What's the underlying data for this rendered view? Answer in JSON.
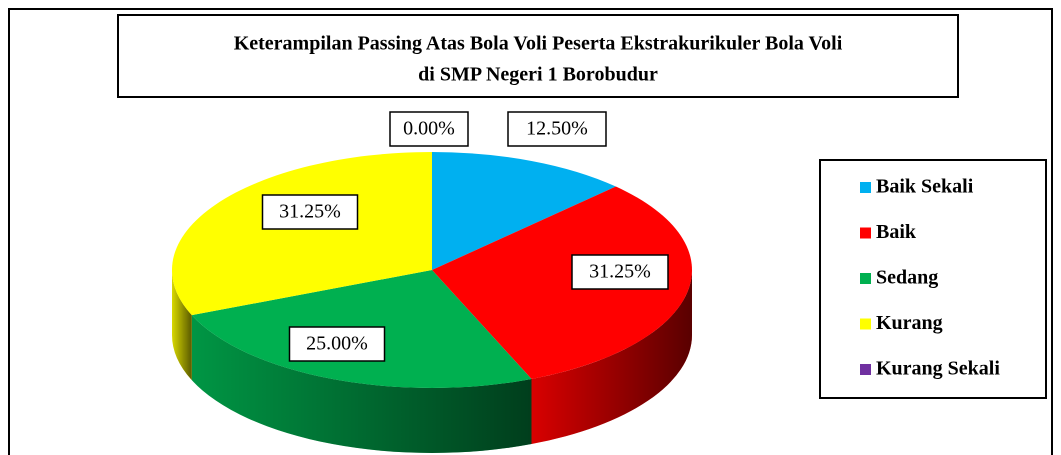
{
  "chart_data": {
    "type": "pie",
    "title": "Keterampilan Passing Atas Bola Voli Peserta Ekstrakurikuler Bola Voli",
    "subtitle": "di SMP Negeri 1 Borobudur",
    "categories": [
      "Baik Sekali",
      "Baik",
      "Sedang",
      "Kurang",
      "Kurang Sekali"
    ],
    "values": [
      12.5,
      31.25,
      25,
      31.25,
      0
    ],
    "value_labels": [
      "12.50%",
      "31.25%",
      "25.00%",
      "31.25%",
      "0.00%"
    ],
    "colors": [
      "#00b0f0",
      "#ff0000",
      "#00b050",
      "#ffff00",
      "#7030a0"
    ],
    "legend": "right"
  }
}
